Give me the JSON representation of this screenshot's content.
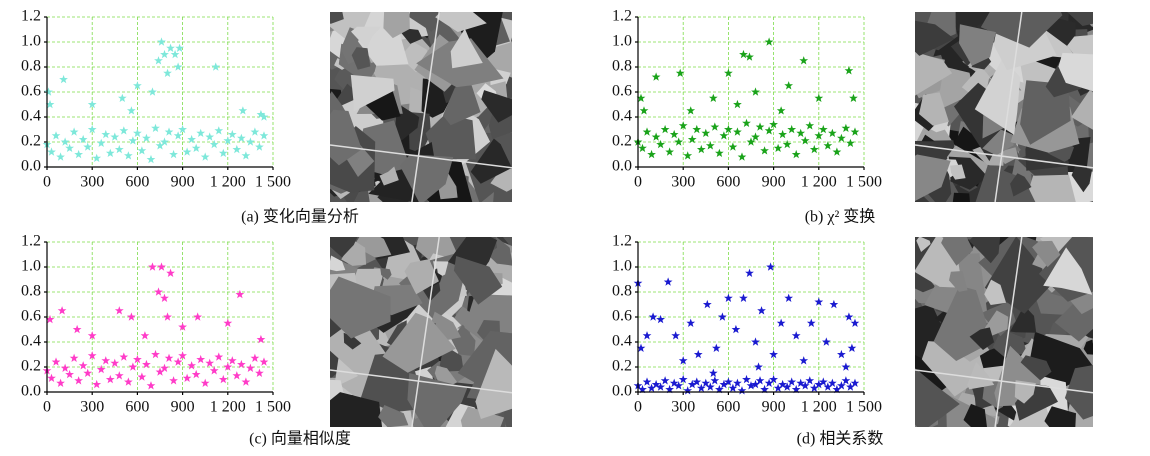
{
  "chart_data": [
    {
      "type": "scatter",
      "caption": "(a) 变化向量分析",
      "color": "#7ee8da",
      "xlim": [
        0,
        1500
      ],
      "ylim": [
        0,
        1.2
      ],
      "grid": true,
      "xticks": [
        0,
        300,
        600,
        900,
        {
          "value": 1200,
          "label": "1 200"
        },
        {
          "value": 1500,
          "label": "1 500"
        }
      ],
      "yticks": [
        {
          "value": 0,
          "label": "0.0"
        },
        0.2,
        0.4,
        0.6,
        0.8,
        {
          "value": 1,
          "label": "1.0"
        },
        1.2
      ],
      "x": [
        0,
        30,
        60,
        90,
        120,
        150,
        180,
        210,
        240,
        270,
        300,
        330,
        360,
        390,
        420,
        450,
        480,
        510,
        540,
        570,
        600,
        630,
        660,
        690,
        720,
        750,
        780,
        810,
        840,
        870,
        900,
        930,
        960,
        990,
        1020,
        1050,
        1080,
        1110,
        1140,
        1170,
        1200,
        1230,
        1260,
        1290,
        1320,
        1350,
        1380,
        1410,
        1440,
        10,
        20,
        110,
        300,
        500,
        560,
        600,
        700,
        740,
        760,
        780,
        800,
        820,
        850,
        870,
        880,
        1120,
        1300,
        1420,
        1440
      ],
      "values": [
        0.18,
        0.12,
        0.25,
        0.08,
        0.2,
        0.15,
        0.28,
        0.1,
        0.22,
        0.16,
        0.3,
        0.07,
        0.19,
        0.26,
        0.11,
        0.24,
        0.14,
        0.29,
        0.09,
        0.21,
        0.27,
        0.13,
        0.23,
        0.06,
        0.31,
        0.17,
        0.2,
        0.28,
        0.1,
        0.25,
        0.3,
        0.12,
        0.22,
        0.15,
        0.27,
        0.08,
        0.24,
        0.18,
        0.29,
        0.11,
        0.21,
        0.26,
        0.14,
        0.23,
        0.09,
        0.2,
        0.28,
        0.16,
        0.25,
        0.6,
        0.5,
        0.7,
        0.5,
        0.55,
        0.45,
        0.65,
        0.6,
        0.85,
        1.0,
        0.9,
        0.75,
        0.95,
        0.9,
        0.8,
        0.95,
        0.8,
        0.45,
        0.42,
        0.4
      ]
    },
    {
      "type": "scatter",
      "caption": "(b) χ² 变换",
      "color": "#1aa31a",
      "xlim": [
        0,
        1500
      ],
      "ylim": [
        0,
        1.2
      ],
      "grid": true,
      "xticks": [
        0,
        300,
        600,
        900,
        {
          "value": 1200,
          "label": "1 200"
        },
        {
          "value": 1500,
          "label": "1 500"
        }
      ],
      "yticks": [
        {
          "value": 0,
          "label": "0.0"
        },
        0.2,
        0.4,
        0.6,
        0.8,
        {
          "value": 1,
          "label": "1.0"
        },
        1.2
      ],
      "x": [
        0,
        30,
        60,
        90,
        120,
        150,
        180,
        210,
        240,
        270,
        300,
        330,
        360,
        390,
        420,
        450,
        480,
        510,
        540,
        570,
        600,
        630,
        660,
        690,
        720,
        750,
        780,
        810,
        840,
        870,
        900,
        930,
        960,
        990,
        1020,
        1050,
        1080,
        1110,
        1140,
        1170,
        1200,
        1230,
        1260,
        1290,
        1320,
        1350,
        1380,
        1410,
        1440,
        20,
        120,
        280,
        500,
        600,
        700,
        740,
        780,
        870,
        1000,
        1100,
        1200,
        1400,
        1430,
        40,
        350,
        660,
        950
      ],
      "values": [
        0.2,
        0.15,
        0.28,
        0.1,
        0.24,
        0.18,
        0.3,
        0.12,
        0.26,
        0.2,
        0.33,
        0.09,
        0.22,
        0.3,
        0.14,
        0.27,
        0.17,
        0.32,
        0.11,
        0.25,
        0.3,
        0.16,
        0.28,
        0.08,
        0.35,
        0.2,
        0.24,
        0.32,
        0.13,
        0.29,
        0.34,
        0.15,
        0.26,
        0.18,
        0.3,
        0.1,
        0.27,
        0.21,
        0.33,
        0.14,
        0.25,
        0.3,
        0.17,
        0.27,
        0.12,
        0.23,
        0.31,
        0.19,
        0.28,
        0.55,
        0.72,
        0.75,
        0.55,
        0.75,
        0.9,
        0.88,
        0.6,
        1.0,
        0.65,
        0.85,
        0.55,
        0.77,
        0.55,
        0.45,
        0.45,
        0.5,
        0.45
      ]
    },
    {
      "type": "scatter",
      "caption": "(c) 向量相似度",
      "color": "#ff3cc8",
      "xlim": [
        0,
        1500
      ],
      "ylim": [
        0,
        1.2
      ],
      "grid": true,
      "xticks": [
        0,
        300,
        600,
        900,
        {
          "value": 1200,
          "label": "1 200"
        },
        {
          "value": 1500,
          "label": "1 500"
        }
      ],
      "yticks": [
        {
          "value": 0,
          "label": "0.0"
        },
        0.2,
        0.4,
        0.6,
        0.8,
        {
          "value": 1,
          "label": "1.0"
        },
        1.2
      ],
      "x": [
        0,
        30,
        60,
        90,
        120,
        150,
        180,
        210,
        240,
        270,
        300,
        330,
        360,
        390,
        420,
        450,
        480,
        510,
        540,
        570,
        600,
        630,
        660,
        690,
        720,
        750,
        780,
        810,
        840,
        870,
        900,
        930,
        960,
        990,
        1020,
        1050,
        1080,
        1110,
        1140,
        1170,
        1200,
        1230,
        1260,
        1290,
        1320,
        1350,
        1380,
        1410,
        1440,
        20,
        100,
        200,
        480,
        560,
        700,
        760,
        740,
        820,
        780,
        800,
        900,
        1000,
        1200,
        1280,
        1420,
        300,
        650
      ],
      "values": [
        0.17,
        0.11,
        0.24,
        0.07,
        0.19,
        0.14,
        0.27,
        0.09,
        0.21,
        0.15,
        0.29,
        0.06,
        0.18,
        0.25,
        0.1,
        0.23,
        0.13,
        0.28,
        0.08,
        0.2,
        0.26,
        0.12,
        0.22,
        0.05,
        0.3,
        0.16,
        0.19,
        0.27,
        0.09,
        0.24,
        0.29,
        0.11,
        0.21,
        0.14,
        0.26,
        0.07,
        0.23,
        0.17,
        0.28,
        0.1,
        0.2,
        0.25,
        0.13,
        0.22,
        0.08,
        0.19,
        0.27,
        0.15,
        0.24,
        0.58,
        0.65,
        0.5,
        0.65,
        0.6,
        1.0,
        1.0,
        0.8,
        0.95,
        0.75,
        0.6,
        0.52,
        0.6,
        0.55,
        0.78,
        0.42,
        0.45,
        0.45
      ]
    },
    {
      "type": "scatter",
      "caption": "(d) 相关系数",
      "color": "#1a1ad0",
      "xlim": [
        0,
        1500
      ],
      "ylim": [
        0,
        1.2
      ],
      "grid": true,
      "xticks": [
        0,
        300,
        600,
        900,
        {
          "value": 1200,
          "label": "1 200"
        },
        {
          "value": 1500,
          "label": "1 500"
        }
      ],
      "yticks": [
        {
          "value": 0,
          "label": "0.0"
        },
        0.2,
        0.4,
        0.6,
        0.8,
        {
          "value": 1,
          "label": "1.0"
        },
        1.2
      ],
      "x": [
        0,
        30,
        60,
        90,
        120,
        150,
        180,
        210,
        240,
        270,
        300,
        330,
        360,
        390,
        420,
        450,
        480,
        510,
        540,
        570,
        600,
        630,
        660,
        690,
        720,
        750,
        780,
        810,
        840,
        870,
        900,
        930,
        960,
        990,
        1020,
        1050,
        1080,
        1110,
        1140,
        1170,
        1200,
        1230,
        1260,
        1290,
        1320,
        1350,
        1380,
        1410,
        1440,
        0,
        20,
        60,
        100,
        150,
        200,
        250,
        300,
        350,
        400,
        460,
        520,
        560,
        600,
        650,
        700,
        740,
        780,
        820,
        880,
        900,
        950,
        1000,
        1050,
        1100,
        1150,
        1200,
        1250,
        1300,
        1350,
        1400,
        1440,
        1420,
        1380,
        500,
        800
      ],
      "values": [
        0.05,
        0.02,
        0.08,
        0.03,
        0.06,
        0.04,
        0.09,
        0.02,
        0.07,
        0.05,
        0.1,
        0.01,
        0.06,
        0.08,
        0.03,
        0.07,
        0.04,
        0.09,
        0.02,
        0.06,
        0.08,
        0.03,
        0.07,
        0.01,
        0.1,
        0.05,
        0.06,
        0.09,
        0.02,
        0.07,
        0.1,
        0.03,
        0.06,
        0.04,
        0.08,
        0.02,
        0.07,
        0.05,
        0.09,
        0.03,
        0.06,
        0.08,
        0.04,
        0.07,
        0.02,
        0.05,
        0.09,
        0.04,
        0.07,
        0.87,
        0.35,
        0.45,
        0.6,
        0.58,
        0.88,
        0.45,
        0.25,
        0.55,
        0.3,
        0.7,
        0.35,
        0.6,
        0.75,
        0.5,
        0.75,
        0.95,
        0.4,
        0.65,
        1.0,
        0.3,
        0.55,
        0.75,
        0.45,
        0.25,
        0.55,
        0.72,
        0.4,
        0.7,
        0.3,
        0.6,
        0.55,
        0.35,
        0.2,
        0.15,
        0.2
      ]
    }
  ]
}
